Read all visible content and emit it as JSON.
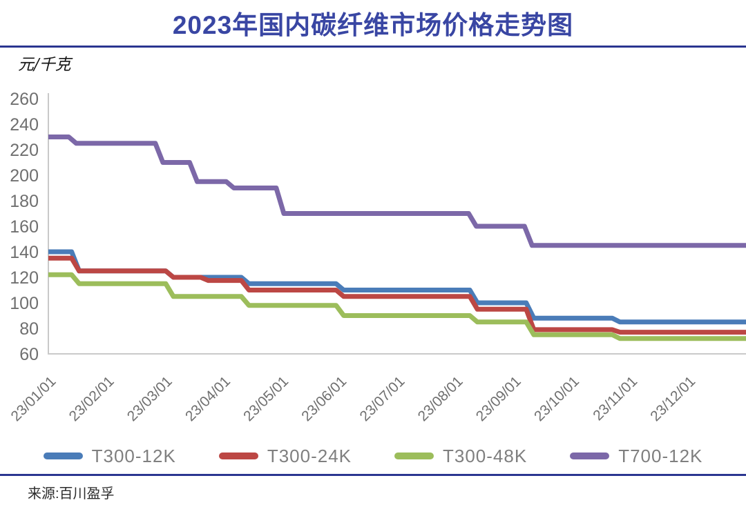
{
  "header": {
    "title": "2023年国内碳纤维市场价格走势图"
  },
  "footer": {
    "source": "来源:百川盈孚"
  },
  "colors": {
    "title_blue": "#3946a3",
    "divider_navy": "#2a3590",
    "axis_gray": "#c9c9c9",
    "tick_label_gray": "#6f6f6f",
    "legend_label_gray": "#7f7f7f"
  },
  "chart_data": {
    "type": "line",
    "subtype": "step",
    "title": "2023年国内碳纤维市场价格走势图",
    "ylabel": "元/千克",
    "ylim": [
      60,
      260
    ],
    "y_ticks": [
      260,
      240,
      220,
      200,
      180,
      160,
      140,
      120,
      100,
      80,
      60
    ],
    "x_tick_labels": [
      "23/01/01",
      "23/02/01",
      "23/03/01",
      "23/04/01",
      "23/05/01",
      "23/06/01",
      "23/07/01",
      "23/08/01",
      "23/09/01",
      "23/10/01",
      "23/11/01",
      "23/12/01"
    ],
    "grid": false,
    "legend_position": "bottom",
    "x_unit": "months_from_2023-01-01",
    "y_unit": "元/千克",
    "series": [
      {
        "name": "T300-12K",
        "color": "#4a7cb8",
        "steps": [
          [
            0,
            140
          ],
          [
            0.45,
            125
          ],
          [
            2.07,
            120
          ],
          [
            3.37,
            115
          ],
          [
            5.0,
            110
          ],
          [
            7.3,
            100
          ],
          [
            8.27,
            88
          ],
          [
            9.75,
            85
          ]
        ],
        "end_month": 12
      },
      {
        "name": "T300-24K",
        "color": "#bc4744",
        "steps": [
          [
            0,
            135
          ],
          [
            0.45,
            125
          ],
          [
            2.07,
            120
          ],
          [
            2.67,
            117.5
          ],
          [
            3.37,
            110
          ],
          [
            5.0,
            105
          ],
          [
            7.3,
            95
          ],
          [
            8.27,
            79
          ],
          [
            9.75,
            77
          ]
        ],
        "end_month": 12
      },
      {
        "name": "T300-48K",
        "color": "#9cbd5b",
        "steps": [
          [
            0,
            122
          ],
          [
            0.45,
            115
          ],
          [
            2.07,
            105
          ],
          [
            3.37,
            98
          ],
          [
            5.0,
            90
          ],
          [
            7.3,
            85
          ],
          [
            8.27,
            75
          ],
          [
            9.75,
            72
          ]
        ],
        "end_month": 12
      },
      {
        "name": "T700-12K",
        "color": "#7c68a8",
        "steps": [
          [
            0,
            230
          ],
          [
            0.4,
            225
          ],
          [
            1.89,
            210
          ],
          [
            2.48,
            195
          ],
          [
            3.11,
            190
          ],
          [
            3.97,
            170
          ],
          [
            7.28,
            160
          ],
          [
            8.24,
            145
          ]
        ],
        "end_month": 12
      }
    ]
  }
}
